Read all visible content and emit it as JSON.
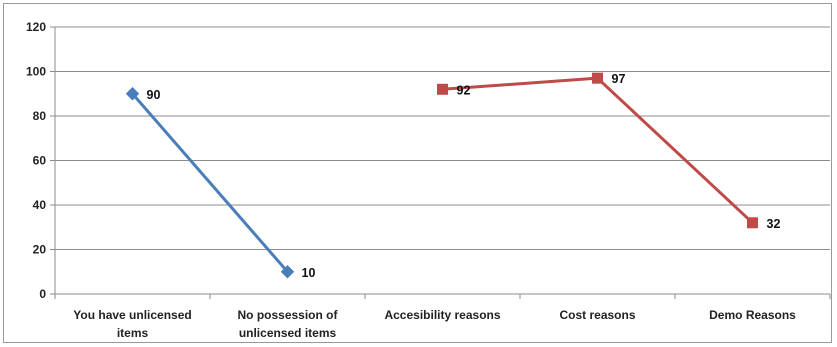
{
  "chart_data": {
    "type": "line",
    "categories": [
      "You have unlicensed items",
      "No possession of unlicensed items",
      "Accesibility reasons",
      "Cost reasons",
      "Demo Reasons"
    ],
    "category_lines": [
      [
        "You have unlicensed",
        "items"
      ],
      [
        "No possession of",
        "unlicensed items"
      ],
      [
        "Accesibility reasons"
      ],
      [
        "Cost reasons"
      ],
      [
        "Demo Reasons"
      ]
    ],
    "series": [
      {
        "values": [
          90,
          10,
          null,
          null,
          null
        ],
        "color": "#4a7ebb",
        "marker": "diamond"
      },
      {
        "values": [
          null,
          null,
          92,
          97,
          32
        ],
        "color": "#be4b48",
        "marker": "square"
      }
    ],
    "data_labels": true,
    "ylim": [
      0,
      120
    ],
    "yticks": [
      0,
      20,
      40,
      60,
      80,
      100,
      120
    ],
    "grid": "horizontal",
    "legend": "none",
    "title": "",
    "xlabel": "",
    "ylabel": ""
  }
}
